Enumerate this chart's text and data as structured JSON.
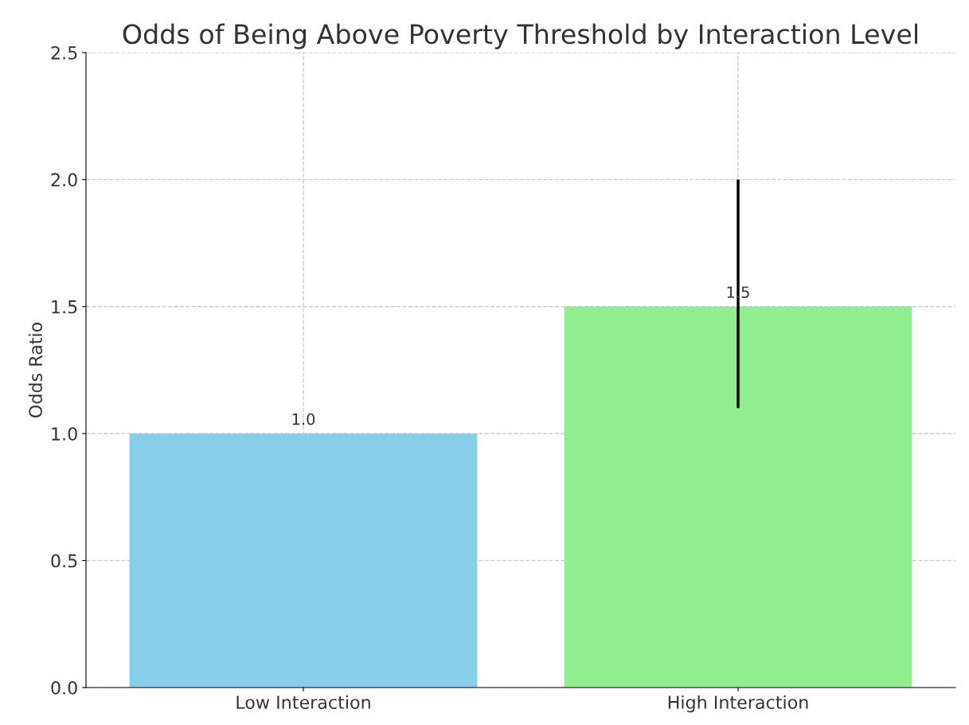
{
  "chart_data": {
    "type": "bar",
    "title": "Odds of Being Above Poverty Threshold by Interaction Level",
    "ylabel": "Odds Ratio",
    "categories": [
      "Low Interaction",
      "High Interaction"
    ],
    "values": [
      1.0,
      1.5
    ],
    "colors": [
      "#87ceeb",
      "#90ee90"
    ],
    "errors": [
      null,
      [
        1.1,
        2.0
      ]
    ],
    "value_labels": [
      "1.0",
      "1.5"
    ],
    "ylim": [
      0,
      2.5
    ],
    "yticks": [
      {
        "value": 0,
        "label": "0.0"
      },
      {
        "value": 0.5,
        "label": "0.5"
      },
      {
        "value": 1.0,
        "label": "1.0"
      },
      {
        "value": 1.5,
        "label": "1.5"
      },
      {
        "value": 2.0,
        "label": "2.0"
      },
      {
        "value": 2.5,
        "label": "2.5"
      }
    ],
    "grid": true
  }
}
